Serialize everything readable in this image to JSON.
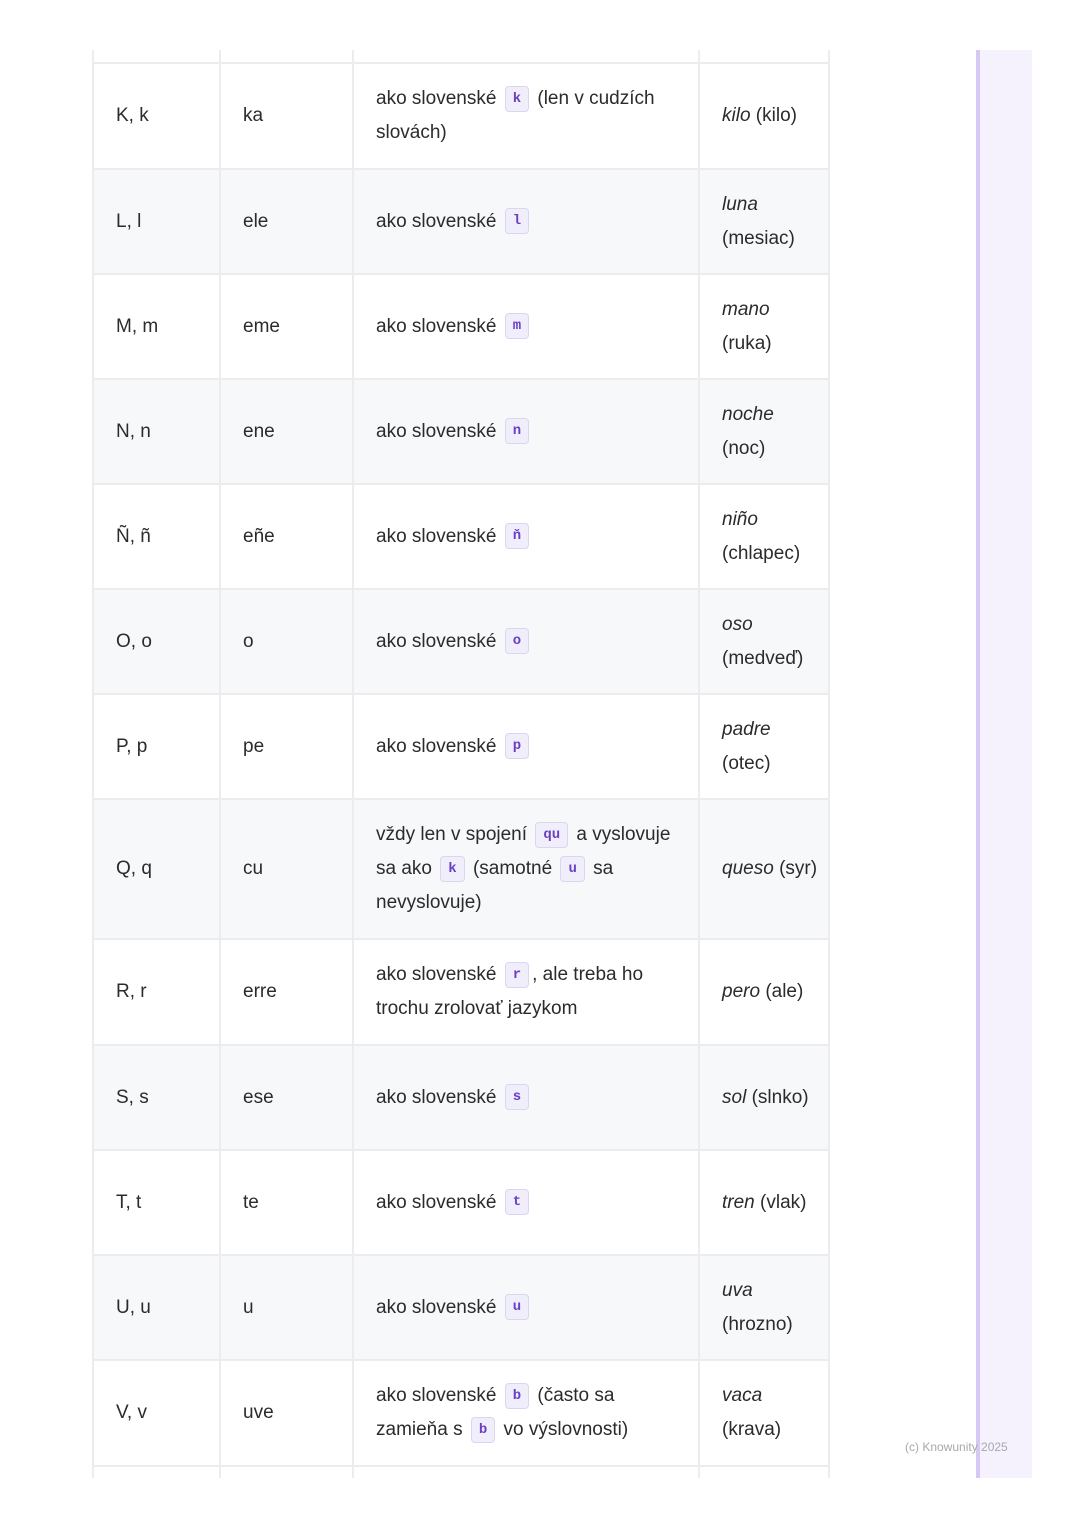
{
  "rows": [
    {
      "letter": "K, k",
      "name": "ka",
      "desc": [
        {
          "t": "ako slovenské "
        },
        {
          "c": "k"
        },
        {
          "t": " (len v cudzích slovách)"
        }
      ],
      "example": "kilo",
      "translation": "(kilo)",
      "h": 106
    },
    {
      "letter": "L, l",
      "name": "ele",
      "desc": [
        {
          "t": "ako slovenské "
        },
        {
          "c": "l"
        }
      ],
      "example": "luna",
      "translation": "(mesiac)",
      "h": 105
    },
    {
      "letter": "M, m",
      "name": "eme",
      "desc": [
        {
          "t": "ako slovenské "
        },
        {
          "c": "m"
        }
      ],
      "example": "mano",
      "translation": "(ruka)",
      "h": 105
    },
    {
      "letter": "N, n",
      "name": "ene",
      "desc": [
        {
          "t": "ako slovenské "
        },
        {
          "c": "n"
        }
      ],
      "example": "noche",
      "translation": "(noc)",
      "h": 105
    },
    {
      "letter": "Ñ, ñ",
      "name": "eñe",
      "desc": [
        {
          "t": "ako slovenské "
        },
        {
          "c": "ň"
        }
      ],
      "example": "niño",
      "translation": "(chlapec)",
      "h": 105
    },
    {
      "letter": "O, o",
      "name": "o",
      "desc": [
        {
          "t": "ako slovenské "
        },
        {
          "c": "o"
        }
      ],
      "example": "oso",
      "translation": "(medveď)",
      "h": 105
    },
    {
      "letter": "P, p",
      "name": "pe",
      "desc": [
        {
          "t": "ako slovenské "
        },
        {
          "c": "p"
        }
      ],
      "example": "padre",
      "translation": "(otec)",
      "h": 105
    },
    {
      "letter": "Q, q",
      "name": "cu",
      "desc": [
        {
          "t": "vždy len v spojení "
        },
        {
          "c": "qu"
        },
        {
          "t": " a vyslovuje sa ako "
        },
        {
          "c": "k"
        },
        {
          "t": " (samotné "
        },
        {
          "c": "u"
        },
        {
          "t": " sa nevyslovuje)"
        }
      ],
      "example": "queso",
      "translation": "(syr)",
      "h": 140
    },
    {
      "letter": "R, r",
      "name": "erre",
      "desc": [
        {
          "t": "ako slovenské "
        },
        {
          "c": "r"
        },
        {
          "t": ", ale treba ho trochu zrolovať jazykom"
        }
      ],
      "example": "pero",
      "translation": "(ale)",
      "h": 106
    },
    {
      "letter": "S, s",
      "name": "ese",
      "desc": [
        {
          "t": "ako slovenské "
        },
        {
          "c": "s"
        }
      ],
      "example": "sol",
      "translation": "(slnko)",
      "h": 105
    },
    {
      "letter": "T, t",
      "name": "te",
      "desc": [
        {
          "t": "ako slovenské "
        },
        {
          "c": "t"
        }
      ],
      "example": "tren",
      "translation": "(vlak)",
      "h": 105
    },
    {
      "letter": "U, u",
      "name": "u",
      "desc": [
        {
          "t": "ako slovenské "
        },
        {
          "c": "u"
        }
      ],
      "example": "uva",
      "translation": "(hrozno)",
      "h": 105
    },
    {
      "letter": "V, v",
      "name": "uve",
      "desc": [
        {
          "t": "ako slovenské "
        },
        {
          "c": "b"
        },
        {
          "t": " (často sa zamieňa s "
        },
        {
          "c": "b"
        },
        {
          "t": " vo výslovnosti)"
        }
      ],
      "example": "vaca",
      "translation": "(krava)",
      "h": 106
    }
  ],
  "footer": {
    "copyright": "(c) Knowunity 2025"
  },
  "colors": {
    "accent": "#6b3fc4",
    "code_bg": "#f1eefb",
    "sidebar": "#f5f2fd",
    "sidebar_bar": "#d5c8f3",
    "row_alt": "#f7f8fa",
    "border": "#ececee"
  }
}
